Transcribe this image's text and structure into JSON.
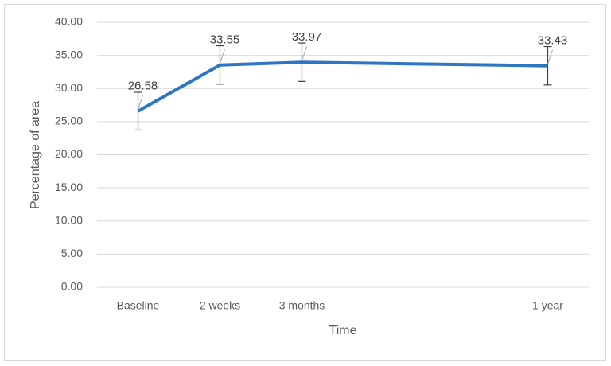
{
  "chart_data": {
    "type": "line",
    "x_label": "Time",
    "y_label": "Percentage of area",
    "categories": [
      "Baseline",
      "2 weeks",
      "3 months",
      null,
      null,
      "1 year"
    ],
    "series": [
      {
        "name": "Percentage of area",
        "color": "#2e75c4",
        "values": [
          26.58,
          33.55,
          33.97,
          null,
          null,
          33.43
        ],
        "errors": [
          2.85,
          2.9,
          2.9,
          null,
          null,
          2.9
        ]
      }
    ],
    "connect_gaps": true,
    "ylim": [
      0,
      40
    ],
    "yticks": [
      {
        "value": 0,
        "label": "0.00"
      },
      {
        "value": 5,
        "label": "5.00"
      },
      {
        "value": 10,
        "label": "10.00"
      },
      {
        "value": 15,
        "label": "15.00"
      },
      {
        "value": 20,
        "label": "20.00"
      },
      {
        "value": 25,
        "label": "25.00"
      },
      {
        "value": 30,
        "label": "30.00"
      },
      {
        "value": 35,
        "label": "35.00"
      },
      {
        "value": 40,
        "label": "40.00"
      }
    ],
    "grid": true
  }
}
